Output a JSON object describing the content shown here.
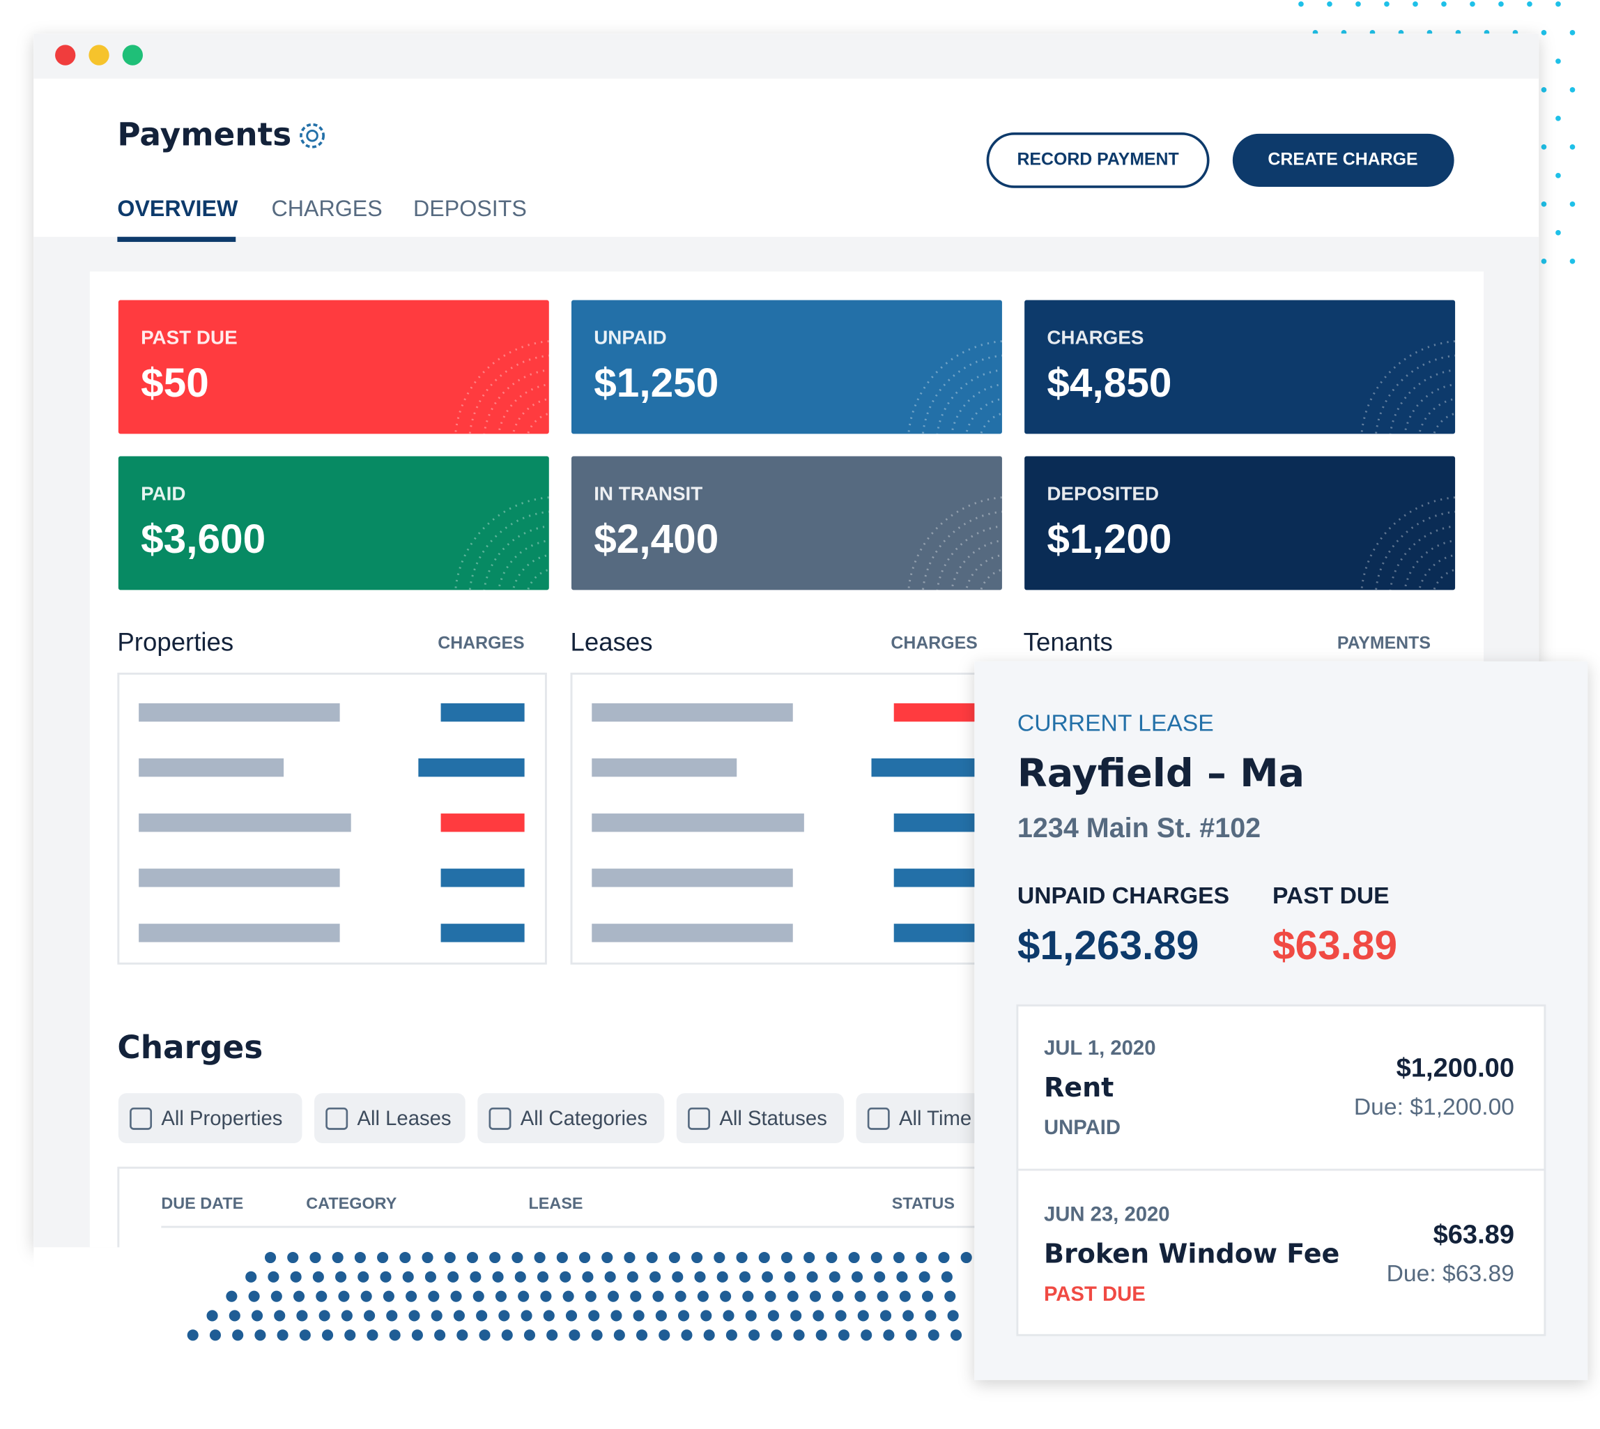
{
  "header": {
    "title": "Payments",
    "tabs": [
      "OVERVIEW",
      "CHARGES",
      "DEPOSITS"
    ],
    "buttons": [
      "RECORD PAYMENT",
      "CREATE CHARGE"
    ]
  },
  "summary_cards": [
    {
      "label": "PAST DUE",
      "value": "$50",
      "color": "#ff3b3f"
    },
    {
      "label": "UNPAID",
      "value": "$1,250",
      "color": "#2370a8"
    },
    {
      "label": "CHARGES",
      "value": "$4,850",
      "color": "#0d3a6b"
    },
    {
      "label": "PAID",
      "value": "$3,600",
      "color": "#078a63"
    },
    {
      "label": "IN TRANSIT",
      "value": "$2,400",
      "color": "#566a80"
    },
    {
      "label": "DEPOSITED",
      "value": "$1,200",
      "color": "#0a2c55"
    }
  ],
  "sections": [
    {
      "title": "Properties",
      "column": "CHARGES"
    },
    {
      "title": "Leases",
      "column": "CHARGES"
    },
    {
      "title": "Tenants",
      "column": "PAYMENTS"
    }
  ],
  "charges": {
    "title": "Charges",
    "filters": [
      "All Properties",
      "All Leases",
      "All Categories",
      "All Statuses",
      "All Time"
    ],
    "columns": [
      "DUE DATE",
      "CATEGORY",
      "LEASE",
      "STATUS"
    ]
  },
  "lease_panel": {
    "eyebrow": "CURRENT LEASE",
    "name": "Rayfield – Ma",
    "address": "1234 Main St. #102",
    "unpaid_label": "UNPAID CHARGES",
    "unpaid_value": "$1,263.89",
    "past_due_label": "PAST DUE",
    "past_due_value": "$63.89",
    "items": [
      {
        "date": "JUL 1, 2020",
        "name": "Rent",
        "status": "UNPAID",
        "amount": "$1,200.00",
        "due": "Due: $1,200.00"
      },
      {
        "date": "JUN 23, 2020",
        "name": "Broken Window Fee",
        "status": "PAST DUE",
        "amount": "$63.89",
        "due": "Due: $63.89"
      }
    ]
  }
}
